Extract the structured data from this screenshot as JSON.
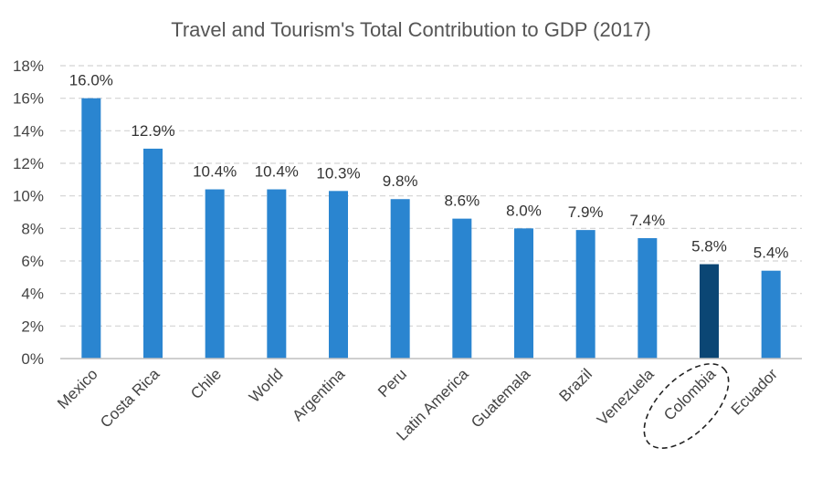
{
  "chart_data": {
    "type": "bar",
    "title": "Travel and Tourism's Total Contribution to GDP (2017)",
    "categories": [
      "Mexico",
      "Costa Rica",
      "Chile",
      "World",
      "Argentina",
      "Peru",
      "Latin America",
      "Guatemala",
      "Brazil",
      "Venezuela",
      "Colombia",
      "Ecuador"
    ],
    "values": [
      16.0,
      12.9,
      10.4,
      10.4,
      10.3,
      9.8,
      8.6,
      8.0,
      7.9,
      7.4,
      5.8,
      5.4
    ],
    "data_labels": [
      "16.0%",
      "12.9%",
      "10.4%",
      "10.4%",
      "10.3%",
      "9.8%",
      "8.6%",
      "8.0%",
      "7.9%",
      "7.4%",
      "5.8%",
      "5.4%"
    ],
    "y_ticks": [
      "0%",
      "2%",
      "4%",
      "6%",
      "8%",
      "10%",
      "12%",
      "14%",
      "16%",
      "18%"
    ],
    "ylim": [
      0,
      18
    ],
    "grid": true,
    "highlight": "Colombia",
    "colors": {
      "bar": "#2a85d0",
      "highlight": "#0b4674",
      "grid": "#d3d3d3"
    }
  }
}
